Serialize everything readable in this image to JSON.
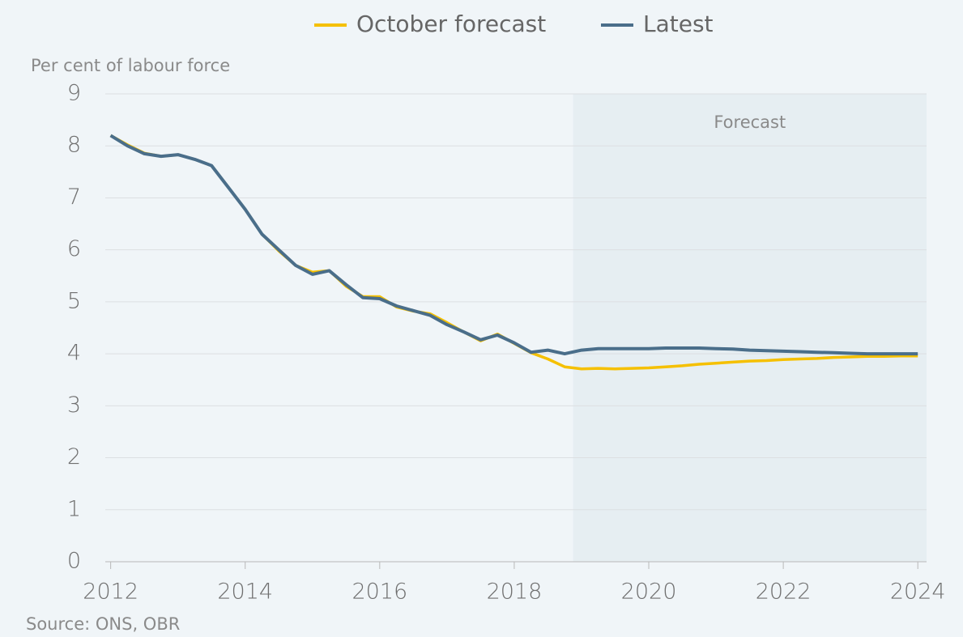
{
  "chart_data": {
    "type": "line",
    "y_label": "Per cent of labour force",
    "source": "Source: ONS, OBR",
    "shaded_label": "Forecast",
    "shaded_from": 2018.875,
    "x": [
      2012,
      2012.25,
      2012.5,
      2012.75,
      2013,
      2013.25,
      2013.5,
      2013.75,
      2014,
      2014.25,
      2014.5,
      2014.75,
      2015,
      2015.25,
      2015.5,
      2015.75,
      2016,
      2016.25,
      2016.5,
      2016.75,
      2017,
      2017.25,
      2017.5,
      2017.75,
      2018,
      2018.25,
      2018.5,
      2018.75,
      2019,
      2019.25,
      2019.5,
      2019.75,
      2020,
      2020.25,
      2020.5,
      2020.75,
      2021,
      2021.25,
      2021.5,
      2021.75,
      2022,
      2022.25,
      2022.5,
      2022.75,
      2023,
      2023.25,
      2023.5,
      2023.75,
      2024
    ],
    "series": [
      {
        "name": "October forecast",
        "color": "#f5c000",
        "values": [
          8.2,
          8.02,
          7.86,
          7.8,
          7.83,
          7.74,
          7.62,
          7.2,
          6.78,
          6.3,
          5.98,
          5.7,
          5.57,
          5.6,
          5.3,
          5.1,
          5.1,
          4.9,
          4.82,
          4.77,
          4.6,
          4.42,
          4.25,
          4.38,
          4.2,
          4.02,
          3.9,
          3.75,
          3.71,
          3.72,
          3.71,
          3.72,
          3.73,
          3.75,
          3.77,
          3.8,
          3.82,
          3.84,
          3.86,
          3.87,
          3.89,
          3.9,
          3.91,
          3.93,
          3.94,
          3.95,
          3.95,
          3.96,
          3.96
        ]
      },
      {
        "name": "Latest",
        "color": "#4a6e8a",
        "values": [
          8.2,
          8.0,
          7.85,
          7.8,
          7.83,
          7.74,
          7.62,
          7.2,
          6.78,
          6.3,
          6.0,
          5.7,
          5.53,
          5.6,
          5.33,
          5.08,
          5.06,
          4.92,
          4.83,
          4.74,
          4.56,
          4.42,
          4.27,
          4.36,
          4.21,
          4.03,
          4.07,
          4.0,
          4.07,
          4.1,
          4.1,
          4.1,
          4.1,
          4.11,
          4.11,
          4.11,
          4.1,
          4.09,
          4.07,
          4.06,
          4.05,
          4.04,
          4.03,
          4.02,
          4.01,
          4.0,
          4.0,
          4.0,
          4.0
        ]
      }
    ],
    "xlim": [
      2011.92,
      2024.13
    ],
    "xticks": [
      2012,
      2014,
      2016,
      2018,
      2020,
      2022,
      2024
    ],
    "ylim": [
      0,
      9
    ],
    "yticks": [
      0,
      1,
      2,
      3,
      4,
      5,
      6,
      7,
      8,
      9
    ],
    "grid": true
  }
}
